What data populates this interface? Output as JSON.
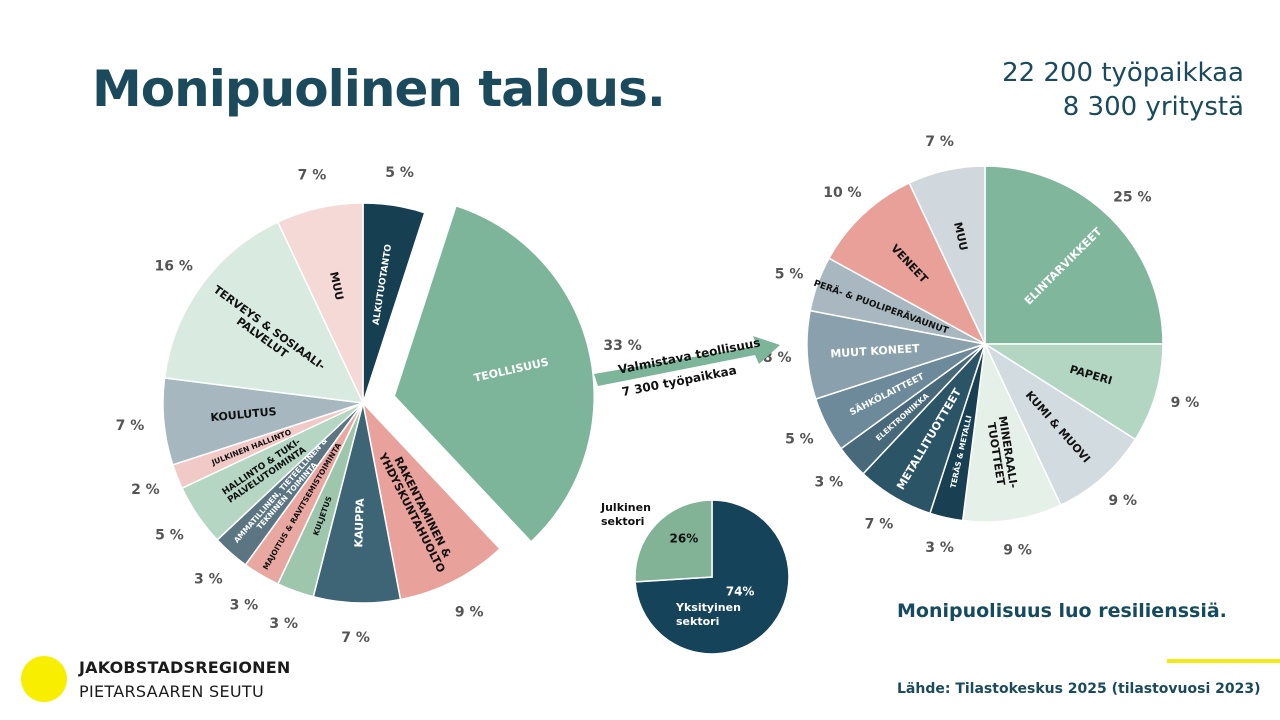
{
  "title": "Monipuolinen talous.",
  "stats": {
    "jobs": "22 200 työpaikkaa",
    "companies": "8 300 yritystä"
  },
  "tagline": "Monipuolisuus luo resilienssiä.",
  "source": "Lähde: Tilastokeskus 2025 (tilastovuosi 2023)",
  "logo": {
    "line1": "JAKOBSTADSREGIONEN",
    "line2": "PIETARSAAREN SEUTU"
  },
  "arrow": {
    "line1": "Valmistava teollisuus",
    "line2": "7 300 työpaikkaa"
  },
  "chart_data": [
    {
      "type": "pie",
      "title": "",
      "exploded": "TEOLLISUUS",
      "slices": [
        {
          "label": "ALKUTUOTANTO",
          "value": 5,
          "pct": "5 %",
          "color": "#163f52"
        },
        {
          "label": "TEOLLISUUS",
          "value": 33,
          "pct": "33 %",
          "color": "#7db59a"
        },
        {
          "label": "RAKENTAMINEN & YHDYSKUNTAHUOLTO",
          "value": 9,
          "pct": "9 %",
          "color": "#e9a19b"
        },
        {
          "label": "KAUPPA",
          "value": 7,
          "pct": "7 %",
          "color": "#3e6576"
        },
        {
          "label": "KULJETUS",
          "value": 3,
          "pct": "3 %",
          "color": "#9dc6ad"
        },
        {
          "label": "MAJOITUS & RAVITSEMISTOIMINTA",
          "value": 3,
          "pct": "3 %",
          "color": "#e9a7a2"
        },
        {
          "label": "AMMATILLINEN, TIETEELLINEN & TEKNINEN TOIMINTA",
          "value": 3,
          "pct": "3 %",
          "color": "#5b7583"
        },
        {
          "label": "HALLINTO & TUKI-PALVELUTOIMINTA",
          "value": 5,
          "pct": "5 %",
          "color": "#b5d6c2"
        },
        {
          "label": "JULKINEN HALLINTO",
          "value": 2,
          "pct": "2 %",
          "color": "#f1c9c6"
        },
        {
          "label": "KOULUTUS",
          "value": 7,
          "pct": "7 %",
          "color": "#a7b7c0"
        },
        {
          "label": "TERVEYS & SOSIAALI-PALVELUT",
          "value": 16,
          "pct": "16 %",
          "color": "#d9ebe1"
        },
        {
          "label": "MUU",
          "value": 7,
          "pct": "7 %",
          "color": "#f4d9d6"
        }
      ]
    },
    {
      "type": "pie",
      "title": "",
      "slices": [
        {
          "label": "ELINTARVIKKEET",
          "value": 25,
          "pct": "25 %",
          "color": "#80b69b"
        },
        {
          "label": "PAPERI",
          "value": 9,
          "pct": "9 %",
          "color": "#b3d6c2"
        },
        {
          "label": "KUMI & MUOVI",
          "value": 9,
          "pct": "9 %",
          "color": "#d2dbe0"
        },
        {
          "label": "MINERAALI-TUOTTEET",
          "value": 9,
          "pct": "9 %",
          "color": "#e5f0e9"
        },
        {
          "label": "TERÄS & METALLI",
          "value": 3,
          "pct": "3 %",
          "color": "#183f52"
        },
        {
          "label": "METALLITUOTTEET",
          "value": 7,
          "pct": "7 %",
          "color": "#2b5567"
        },
        {
          "label": "ELEKTRONIIKKA",
          "value": 3,
          "pct": "3 %",
          "color": "#47697a"
        },
        {
          "label": "SÄHKÖLAITTEET",
          "value": 5,
          "pct": "5 %",
          "color": "#6c8a99"
        },
        {
          "label": "MUUT KONEET",
          "value": 8,
          "pct": "8 %",
          "color": "#8aa1ad"
        },
        {
          "label": "PERÄ- & PUOLIPERÄVAUNUT",
          "value": 5,
          "pct": "5 %",
          "color": "#a9b8c0"
        },
        {
          "label": "VENEET",
          "value": 10,
          "pct": "10 %",
          "color": "#e8a099"
        },
        {
          "label": "MUU",
          "value": 7,
          "pct": "7 %",
          "color": "#d0d7dd"
        }
      ]
    },
    {
      "type": "pie",
      "title": "",
      "slices": [
        {
          "label": "Yksityinen sektori",
          "value": 74,
          "pct": "74%",
          "color": "#15445a"
        },
        {
          "label": "Julkinen sektori",
          "value": 26,
          "pct": "26%",
          "color": "#82b396"
        }
      ]
    }
  ]
}
